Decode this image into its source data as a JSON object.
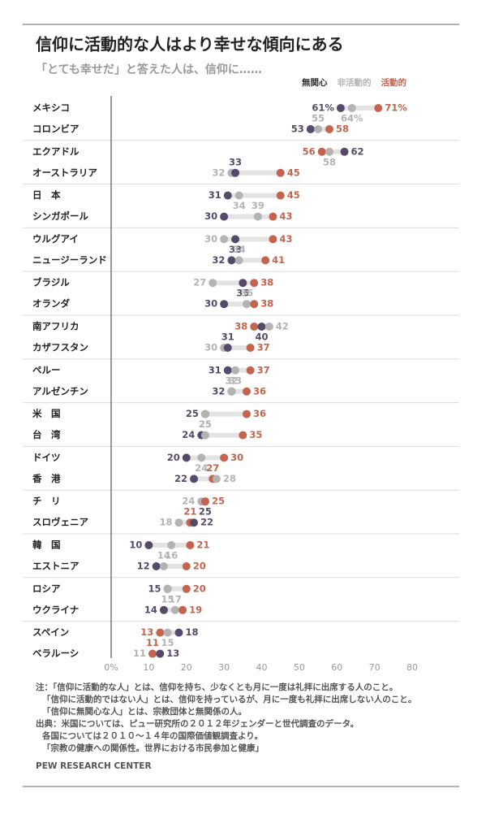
{
  "chart_data": {
    "type": "dot",
    "title": "信仰に活動的な人はより幸せな傾向にある",
    "subtitle": "「とても幸せだ」と答えた人は、信仰に……",
    "categories": [
      "メキシコ",
      "コロンビア",
      "エクアドル",
      "オーストラリア",
      "日　本",
      "シンガポール",
      "ウルグアイ",
      "ニュージーランド",
      "ブラジル",
      "オランダ",
      "南アフリカ",
      "カザフスタン",
      "ペルー",
      "アルゼンチン",
      "米　国",
      "台　湾",
      "ドイツ",
      "香　港",
      "チ　リ",
      "スロヴェニア",
      "韓　国",
      "エストニア",
      "ロシア",
      "ウクライナ",
      "スペイン",
      "ベラルーシ"
    ],
    "series": [
      {
        "name": "無関心",
        "color": "#554a6a",
        "values": [
          61,
          53,
          62,
          33,
          31,
          30,
          33,
          32,
          35,
          30,
          40,
          31,
          31,
          32,
          25,
          24,
          20,
          22,
          25,
          22,
          10,
          12,
          15,
          14,
          18,
          13
        ],
        "value_labels": [
          "61%",
          null,
          null,
          null,
          null,
          null,
          null,
          null,
          null,
          null,
          null,
          null,
          null,
          null,
          null,
          null,
          null,
          null,
          null,
          null,
          null,
          null,
          null,
          null,
          null,
          null
        ]
      },
      {
        "name": "非活動的",
        "color": "#b3b3b3",
        "values": [
          64,
          55,
          58,
          32,
          34,
          39,
          30,
          34,
          27,
          36,
          42,
          30,
          33,
          32,
          25,
          25,
          24,
          28,
          24,
          18,
          16,
          14,
          15,
          17,
          15,
          11
        ],
        "value_labels": [
          "64%",
          null,
          null,
          null,
          null,
          null,
          null,
          null,
          null,
          null,
          null,
          null,
          null,
          null,
          null,
          null,
          null,
          null,
          null,
          null,
          null,
          null,
          null,
          null,
          null,
          null
        ]
      },
      {
        "name": "活動的",
        "color": "#c4644e",
        "values": [
          71,
          58,
          56,
          45,
          45,
          43,
          43,
          41,
          38,
          38,
          38,
          37,
          37,
          36,
          36,
          35,
          30,
          27,
          25,
          21,
          21,
          20,
          20,
          19,
          13,
          11
        ],
        "value_labels": [
          "71%",
          null,
          null,
          null,
          null,
          null,
          null,
          null,
          null,
          null,
          null,
          null,
          null,
          null,
          null,
          null,
          null,
          null,
          null,
          null,
          null,
          null,
          null,
          null,
          null,
          null
        ]
      }
    ],
    "xlim": [
      0,
      80
    ],
    "xticks": [
      {
        "value": 0,
        "label": "0%"
      },
      10,
      20,
      30,
      40,
      50,
      60,
      70,
      80
    ],
    "notes": [
      "注：「信仰に活動的な人」とは、信仰を持ち、少なくとも月に一度は礼拝に出席する人のこと。",
      "「信仰に活動的ではない人」とは、信仰を持っているが、月に一度も礼拝に出席しない人のこと。",
      "「信仰に無関心な人」とは、宗教団体と無関係の人。",
      "出典：米国については、ピュー研究所の２０１２年ジェンダーと世代調査のデータ。",
      "各国については２０１０～１４年の国際価値観調査より。",
      "「宗教の健康への関係性。世界における市民参加と健康」"
    ],
    "source": "PEW RESEARCH CENTER"
  }
}
